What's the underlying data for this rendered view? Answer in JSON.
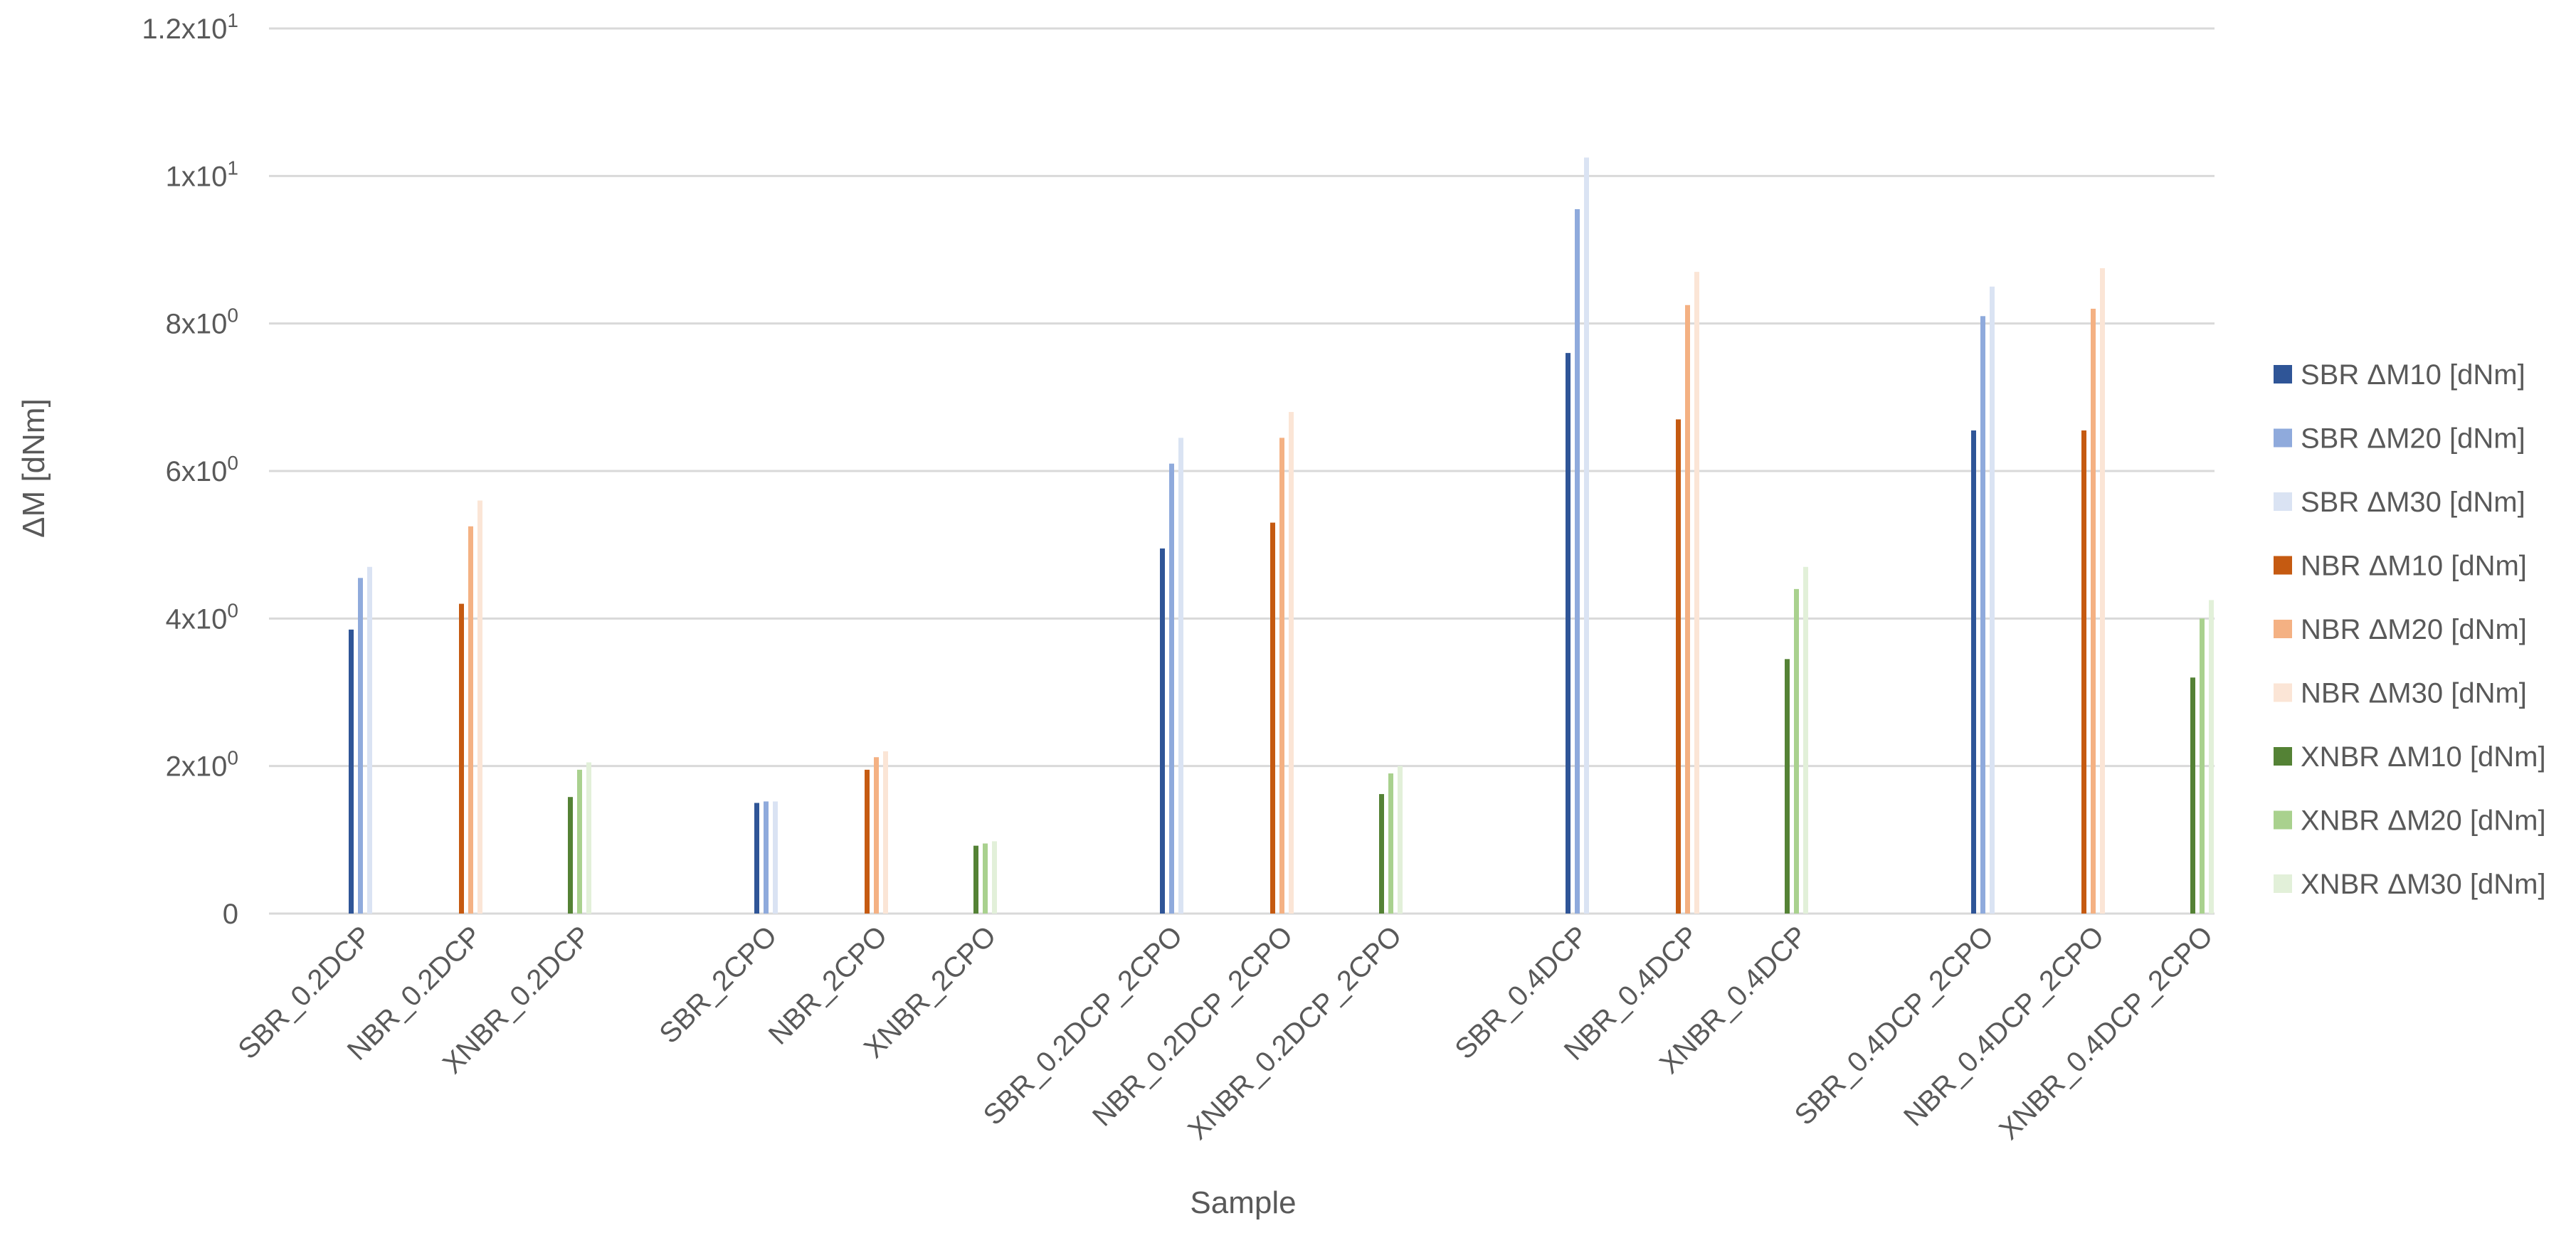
{
  "chart_data": {
    "type": "bar",
    "xlabel": "Sample",
    "ylabel": "ΔM [dNm]",
    "ylim": [
      0,
      12
    ],
    "yticks": [
      {
        "value": 0,
        "label": "0"
      },
      {
        "value": 2,
        "label": "2x10",
        "exp": "0"
      },
      {
        "value": 4,
        "label": "4x10",
        "exp": "0"
      },
      {
        "value": 6,
        "label": "6x10",
        "exp": "0"
      },
      {
        "value": 8,
        "label": "8x10",
        "exp": "0"
      },
      {
        "value": 10,
        "label": "1x10",
        "exp": "1"
      },
      {
        "value": 12,
        "label": "1.2x10",
        "exp": "1"
      }
    ],
    "grid": true,
    "legend_position": "right",
    "groups": [
      {
        "categories": [
          "SBR_0.2DCP",
          "NBR_0.2DCP",
          "XNBR_0.2DCP"
        ]
      },
      {
        "categories": [
          "SBR_2CPO",
          "NBR_2CPO",
          "XNBR_2CPO"
        ]
      },
      {
        "categories": [
          "SBR_0.2DCP_2CPO",
          "NBR_0.2DCP_2CPO",
          "XNBR_0.2DCP_2CPO"
        ]
      },
      {
        "categories": [
          "SBR_0.4DCP",
          "NBR_0.4DCP",
          "XNBR_0.4DCP"
        ]
      },
      {
        "categories": [
          "SBR_0.4DCP_2CPO",
          "NBR_0.4DCP_2CPO",
          "XNBR_0.4DCP_2CPO"
        ]
      }
    ],
    "series": [
      {
        "name": "SBR ΔM10 [dNm]",
        "color": "#2f5597",
        "category_index": 0,
        "values": [
          3.85,
          1.5,
          4.95,
          7.6,
          6.55
        ]
      },
      {
        "name": "SBR ΔM20 [dNm]",
        "color": "#8faadc",
        "category_index": 0,
        "values": [
          4.55,
          1.52,
          6.1,
          9.55,
          8.1
        ]
      },
      {
        "name": "SBR ΔM30 [dNm]",
        "color": "#dae3f3",
        "category_index": 0,
        "values": [
          4.7,
          1.52,
          6.45,
          10.25,
          8.5
        ]
      },
      {
        "name": "NBR ΔM10 [dNm]",
        "color": "#c55a11",
        "category_index": 1,
        "values": [
          4.2,
          1.95,
          5.3,
          6.7,
          6.55
        ]
      },
      {
        "name": "NBR ΔM20 [dNm]",
        "color": "#f4b183",
        "category_index": 1,
        "values": [
          5.25,
          2.12,
          6.45,
          8.25,
          8.2
        ]
      },
      {
        "name": "NBR ΔM30 [dNm]",
        "color": "#fbe5d6",
        "category_index": 1,
        "values": [
          5.6,
          2.2,
          6.8,
          8.7,
          8.75
        ]
      },
      {
        "name": "XNBR ΔM10 [dNm]",
        "color": "#548235",
        "category_index": 2,
        "values": [
          1.58,
          0.92,
          1.62,
          3.45,
          3.2
        ]
      },
      {
        "name": "XNBR ΔM20 [dNm]",
        "color": "#a9d18e",
        "category_index": 2,
        "values": [
          1.95,
          0.95,
          1.9,
          4.4,
          4.0
        ]
      },
      {
        "name": "XNBR ΔM30 [dNm]",
        "color": "#e2f0d9",
        "category_index": 2,
        "values": [
          2.05,
          0.98,
          2.0,
          4.7,
          4.25
        ]
      }
    ]
  }
}
